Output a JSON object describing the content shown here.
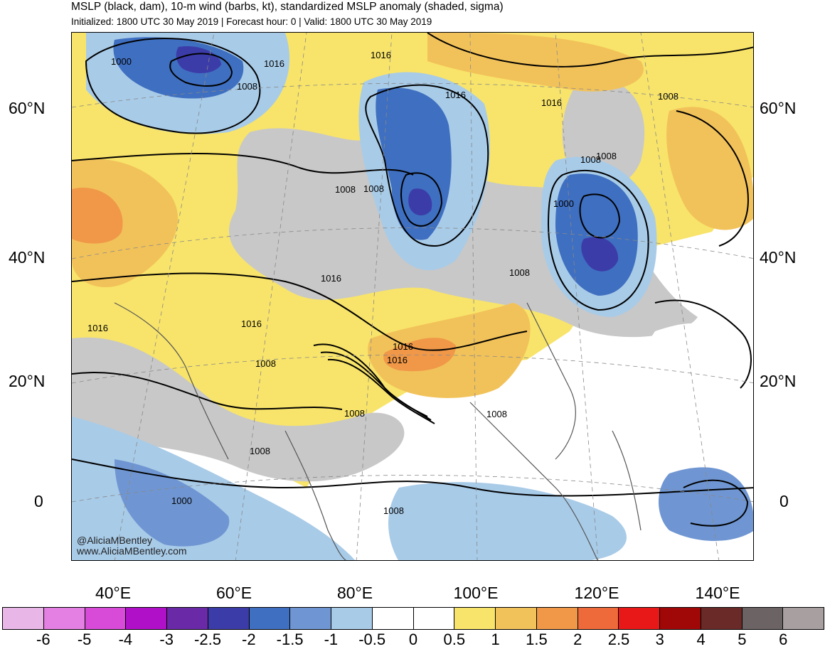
{
  "title": "MSLP (black, dam), 10-m wind (barbs, kt), standardized MSLP anomaly (shaded, sigma)",
  "subtitle": "Initialized: 1800 UTC 30 May 2019 | Forecast hour: 0 | Valid: 1800 UTC 30 May 2019",
  "credits": {
    "twitter": "@AliciaMBentley",
    "website": "www.AliciaMBentley.com"
  },
  "latitude_labels": [
    "60°N",
    "40°N",
    "20°N",
    "0"
  ],
  "longitude_labels": [
    "40°E",
    "60°E",
    "80°E",
    "100°E",
    "120°E",
    "140°E"
  ],
  "colorbar": {
    "tick_labels": [
      "-6",
      "-5",
      "-4",
      "-3",
      "-2.5",
      "-2",
      "-1.5",
      "-1",
      "-0.5",
      "0",
      "0.5",
      "1",
      "1.5",
      "2",
      "2.5",
      "3",
      "4",
      "5",
      "6"
    ],
    "colors": [
      "#e8b7e7",
      "#e47fe4",
      "#d84bd8",
      "#b010c8",
      "#6a2aa8",
      "#3c3ca8",
      "#3f6fc0",
      "#6f96d2",
      "#a8cbe8",
      "#ffffff",
      "#ffffff",
      "#f8e46a",
      "#f2c25a",
      "#f09848",
      "#ef6a3a",
      "#e81818",
      "#a00808",
      "#6a2a28",
      "#6c6464",
      "#a8a0a0"
    ]
  },
  "contour_labels": [
    "1000",
    "1016",
    "1008",
    "1016",
    "1008",
    "1016",
    "1016",
    "1008",
    "1008",
    "1000",
    "1016",
    "1016",
    "1008",
    "1016",
    "1016",
    "1016",
    "1008",
    "1008",
    "1008",
    "1000",
    "1008",
    "1008",
    "1008",
    "1008"
  ]
}
